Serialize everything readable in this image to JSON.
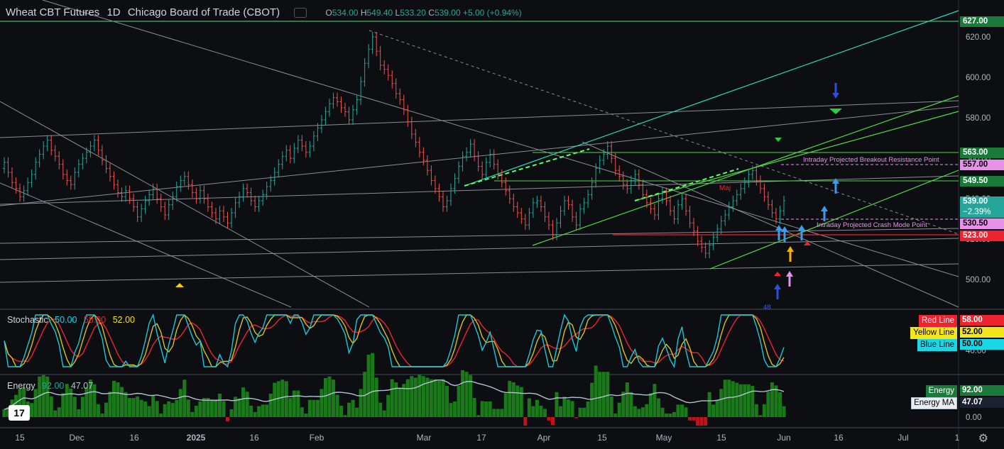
{
  "header": {
    "symbol": "Wheat CBT Futures",
    "interval": "1D",
    "exchange": "Chicago Board of Trade (CBOT)",
    "o_label": "O",
    "o": "534.00",
    "h_label": "H",
    "h": "549.40",
    "l_label": "L",
    "l": "533.20",
    "c_label": "C",
    "c": "539.00",
    "change": "+5.00 (+0.94%)"
  },
  "colors": {
    "up": "#26a69a",
    "down": "#ef5350",
    "background": "#0d0e12",
    "grid": "#1e222d"
  },
  "chart_data": [
    {
      "type": "candlestick",
      "title": "Wheat CBT Futures 1D",
      "x_ticks": [
        "15",
        "Dec",
        "16",
        "2025",
        "16",
        "Feb",
        "Mar",
        "17",
        "Apr",
        "15",
        "May",
        "15",
        "Jun",
        "16",
        "Jul",
        "1"
      ],
      "y_ticks": [
        "620.00",
        "600.00",
        "580.00",
        "560.00",
        "540.00",
        "520.00",
        "500.00"
      ],
      "ylim": [
        486,
        632
      ],
      "close_series": [
        558,
        553,
        548,
        545,
        541,
        544,
        548,
        552,
        558,
        562,
        566,
        569,
        564,
        561,
        557,
        552,
        549,
        547,
        553,
        557,
        560,
        563,
        566,
        569,
        564,
        559,
        555,
        551,
        547,
        543,
        541,
        544,
        540,
        536,
        531,
        535,
        539,
        542,
        545,
        540,
        536,
        532,
        537,
        541,
        546,
        549,
        551,
        547,
        543,
        540,
        544,
        540,
        536,
        533,
        530,
        534,
        531,
        528,
        533,
        538,
        541,
        545,
        543,
        539,
        536,
        539,
        542,
        546,
        549,
        553,
        557,
        561,
        564,
        560,
        565,
        569,
        566,
        563,
        566,
        571,
        575,
        579,
        583,
        587,
        590,
        588,
        585,
        583,
        579,
        584,
        589,
        598,
        607,
        614,
        620,
        613,
        606,
        604,
        601,
        597,
        592,
        589,
        584,
        578,
        572,
        568,
        563,
        559,
        554,
        549,
        545,
        541,
        536,
        539,
        545,
        550,
        556,
        561,
        563,
        567,
        561,
        556,
        552,
        558,
        562,
        557,
        552,
        548,
        544,
        540,
        536,
        533,
        530,
        527,
        533,
        538,
        539,
        536,
        531,
        527,
        522,
        528,
        534,
        539,
        537,
        531,
        527,
        535,
        538,
        542,
        548,
        555,
        559,
        562,
        566,
        560,
        554,
        551,
        547,
        545,
        549,
        552,
        547,
        542,
        538,
        535,
        532,
        540,
        543,
        539,
        534,
        530,
        537,
        540,
        534,
        528,
        524,
        519,
        516,
        513,
        517,
        521,
        525,
        529,
        532,
        536,
        539,
        542,
        545,
        548,
        552,
        554,
        549,
        545,
        541,
        537,
        533,
        530,
        534,
        539
      ],
      "price_labels": [
        {
          "value": "627.00",
          "color": "#1a7a3a"
        },
        {
          "value": "563.00",
          "color": "#1a7a3a"
        },
        {
          "value": "557.00",
          "color": "#e891e8"
        },
        {
          "value": "549.50",
          "color": "#1a7a3a"
        },
        {
          "value": "539.00",
          "sub": "−2.39%",
          "color": "#26a69a"
        },
        {
          "value": "530.50",
          "color": "#e891e8"
        },
        {
          "value": "523.00",
          "color": "#ef2330"
        }
      ],
      "annotations": {
        "breakout": "Intraday Projected Breakout Resistance Point",
        "crash": "Intraday Projected Crash Mode Point",
        "maj": "Maj",
        "small_label": "48"
      }
    },
    {
      "type": "line",
      "title": "Stochastic",
      "values_text": {
        "blue": "50.00",
        "red": "58.00",
        "yellow": "52.00"
      },
      "legend": [
        {
          "name": "Red Line",
          "value": "58.00",
          "color": "#ef2330"
        },
        {
          "name": "Yellow Line",
          "value": "52.00",
          "color": "#f5e51b"
        },
        {
          "name": "Blue Line",
          "value": "50.00",
          "color": "#18d8e8"
        }
      ],
      "axis_tick": "40.00"
    },
    {
      "type": "bar",
      "title": "Energy",
      "values_text": {
        "energy": "92.00",
        "ma": "47.07"
      },
      "legend": [
        {
          "name": "Energy",
          "value": "92.00",
          "color": "#1a7a3a"
        },
        {
          "name": "Energy MA",
          "value": "47.07",
          "color": "#b0c4d0"
        }
      ],
      "axis_tick": "0.00"
    }
  ]
}
